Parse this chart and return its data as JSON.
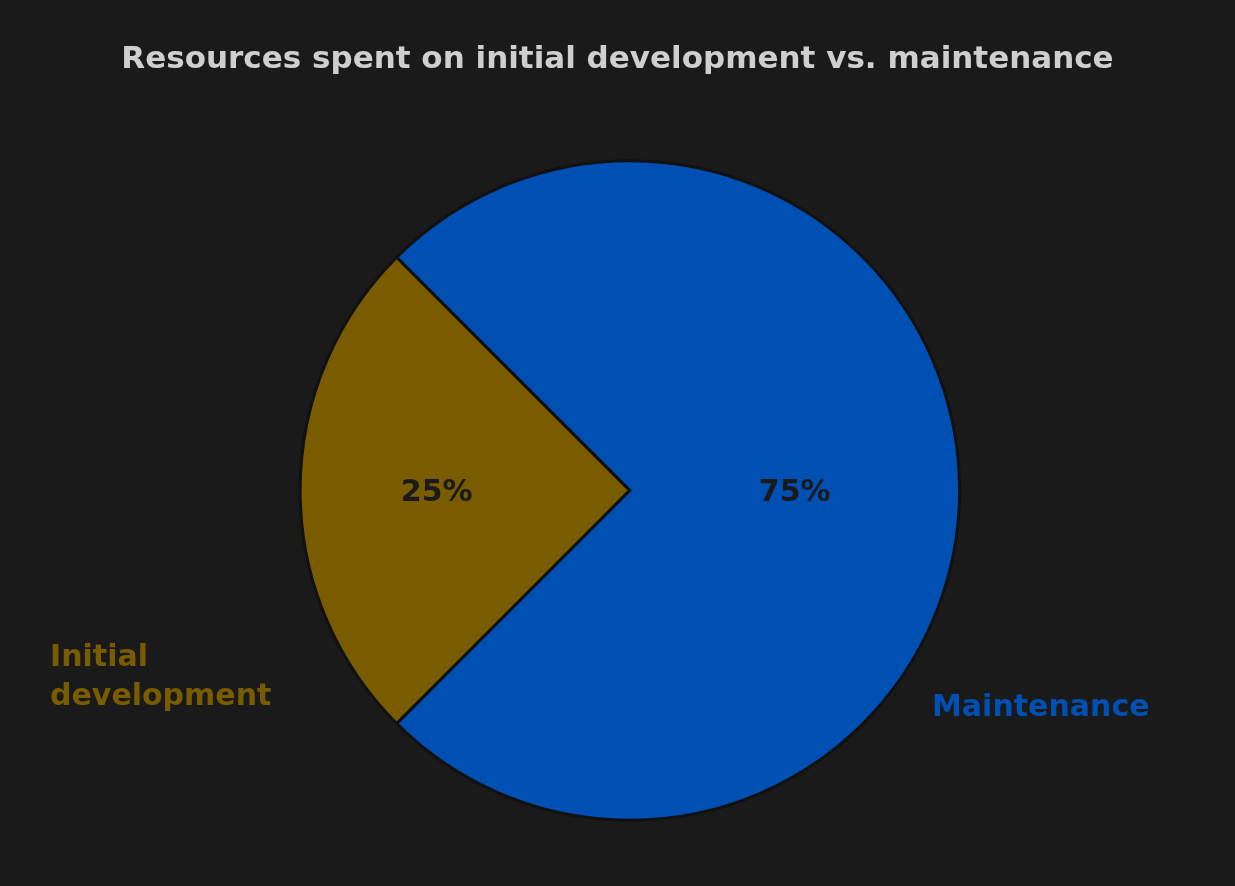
{
  "chart_data": {
    "type": "pie",
    "title": "Resources spent on initial development vs. maintenance",
    "categories": [
      "Initial development",
      "Maintenance"
    ],
    "values": [
      25,
      75
    ],
    "value_labels": [
      "25%",
      "75%"
    ],
    "colors": [
      "#7a5c00",
      "#0050b4"
    ],
    "legend": false
  }
}
